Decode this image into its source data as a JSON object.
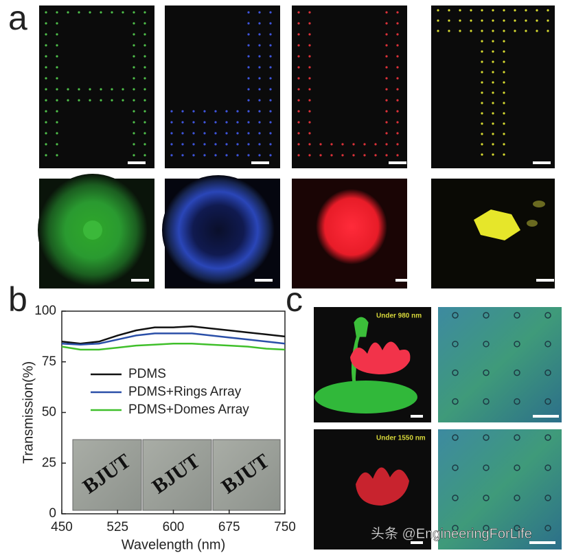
{
  "panel_labels": [
    "a",
    "b",
    "c"
  ],
  "chart_data": {
    "type": "line",
    "xlabel": "Wavelength (nm)",
    "ylabel": "Transmission(%)",
    "x": [
      450,
      475,
      500,
      525,
      550,
      575,
      600,
      625,
      650,
      675,
      700,
      725,
      750
    ],
    "series": [
      {
        "name": "PDMS",
        "color": "#111111",
        "values": [
          85,
          84,
          85,
          88,
          90.5,
          92,
          92,
          92.5,
          91.5,
          90.5,
          89.5,
          88.5,
          87.5
        ]
      },
      {
        "name": "PDMS+Rings Array",
        "color": "#2a4fa8",
        "values": [
          84,
          83.5,
          84,
          86,
          88,
          89,
          89,
          89,
          88,
          87,
          86,
          85,
          84
        ]
      },
      {
        "name": "PDMS+Domes Array",
        "color": "#3fbf2a",
        "values": [
          82.5,
          81,
          81,
          82,
          83,
          83.5,
          84,
          84,
          83.5,
          83,
          82.5,
          81.5,
          81
        ]
      }
    ],
    "xlim": [
      450,
      750
    ],
    "xticks": [
      450,
      525,
      600,
      675,
      750
    ],
    "ylim": [
      0,
      100
    ],
    "yticks": [
      0,
      25,
      50,
      75,
      100
    ],
    "legend": "upper left"
  },
  "inset_labels": [
    "BJUT",
    "BJUT",
    "BJUT"
  ],
  "panel_c": {
    "captions": [
      "Under 980 nm",
      "Under 1550 nm"
    ]
  },
  "watermark": "头条 @EngineeringForLife"
}
